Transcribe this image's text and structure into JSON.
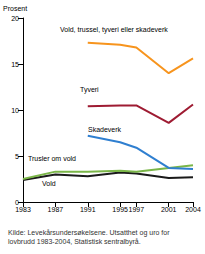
{
  "chart_data": {
    "type": "line",
    "y_label": "Prosent",
    "source": "Kilde: Levekårsundersøkelsene. Utsatthet og uro for lovbrudd 1983-2004, Statistisk sentralbyrå.",
    "x": [
      1983,
      1987,
      1991,
      1995,
      1997,
      2001,
      2004
    ],
    "series": [
      {
        "name": "Vold, trussel, tyveri eller skadeverk",
        "color": "#f7941d",
        "values": [
          null,
          null,
          17.3,
          17.1,
          16.8,
          14.0,
          15.6
        ]
      },
      {
        "name": "Tyveri",
        "color": "#9e1b32",
        "values": [
          null,
          null,
          10.4,
          10.5,
          10.5,
          8.6,
          10.6
        ]
      },
      {
        "name": "Skadeverk",
        "color": "#2f7fd0",
        "values": [
          null,
          null,
          7.2,
          6.5,
          5.9,
          3.7,
          3.6
        ]
      },
      {
        "name": "Trusler om vold",
        "color": "#7ab648",
        "values": [
          2.5,
          3.3,
          3.3,
          3.4,
          3.3,
          3.7,
          4.0
        ]
      },
      {
        "name": "Vold",
        "color": "#1a1a1a",
        "values": [
          2.4,
          3.0,
          2.8,
          3.2,
          3.1,
          2.6,
          2.7
        ]
      }
    ],
    "xlim": [
      1983,
      2004
    ],
    "xticks": [
      1983,
      1987,
      1991,
      1995,
      1997,
      2001,
      2004
    ],
    "ylim": [
      0,
      20
    ],
    "yticks": [
      0,
      5,
      10,
      15,
      20
    ],
    "grid": false
  }
}
